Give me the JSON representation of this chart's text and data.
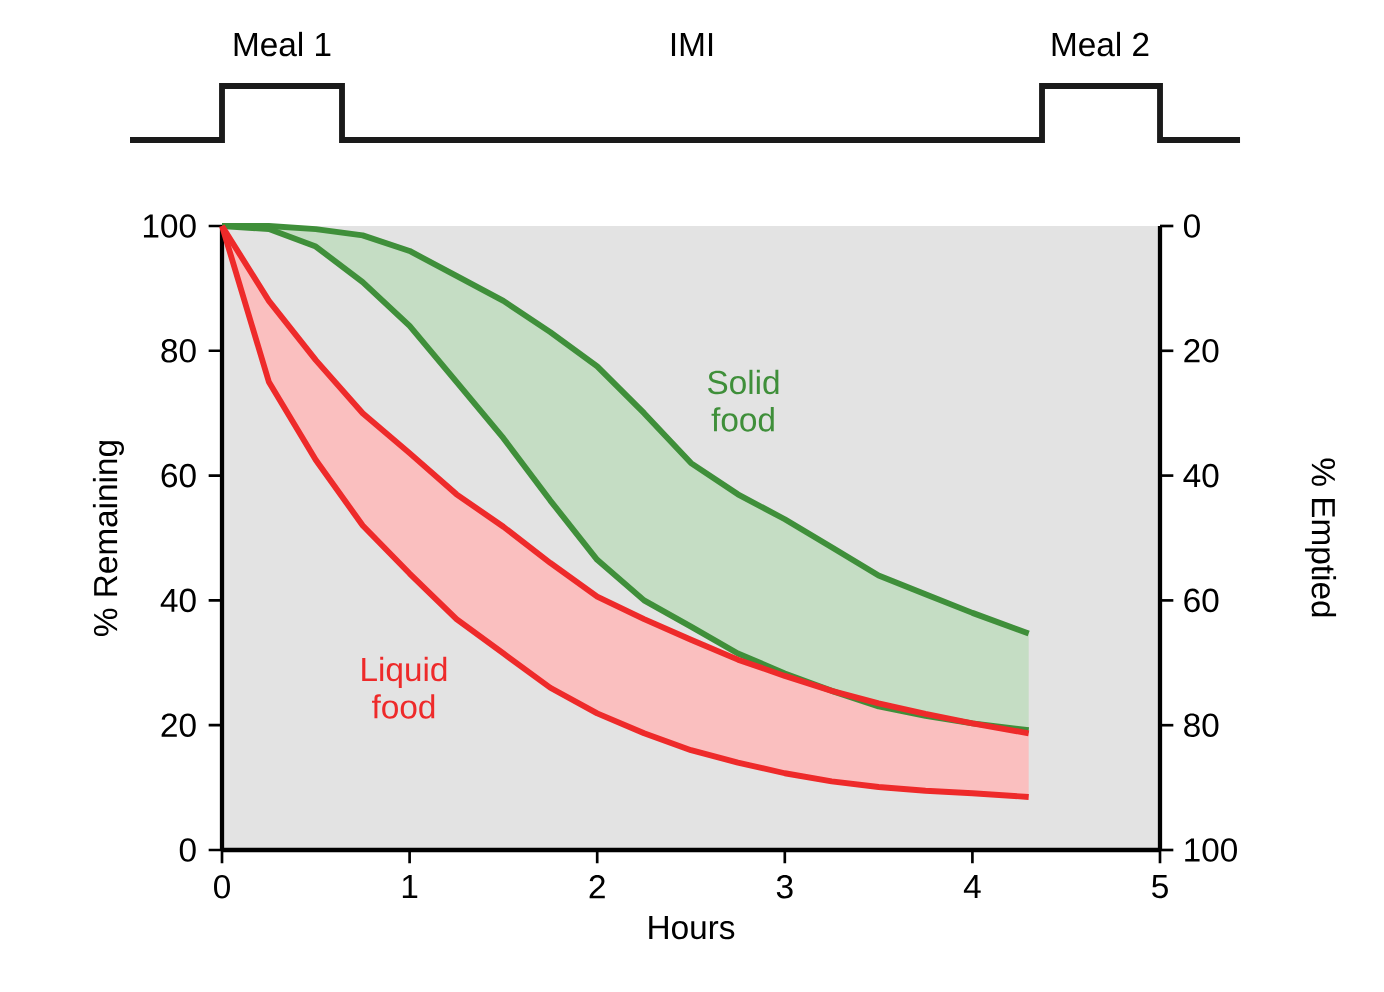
{
  "chart_data": [
    {
      "type": "other",
      "annotations": [
        "Meal 1",
        "IMI",
        "Meal 2"
      ]
    },
    {
      "type": "line",
      "xlabel": "Hours",
      "ylabel": "% Remaining",
      "y2label": "% Emptied",
      "marker": "none",
      "x": [
        0,
        0.25,
        0.5,
        0.75,
        1,
        1.25,
        1.5,
        1.75,
        2,
        2.25,
        2.5,
        2.75,
        3,
        3.25,
        3.5,
        3.75,
        4,
        4.3
      ],
      "series": [
        {
          "color": "#3f8f3a",
          "values": [
            100,
            100,
            99.5,
            98.5,
            96,
            92,
            88,
            83,
            77.5,
            70,
            62,
            57,
            53,
            48.5,
            44,
            41,
            38,
            34.7
          ],
          "upper": [
            100,
            100,
            99.5,
            98.5,
            96,
            92,
            88,
            83,
            77.5,
            70,
            62,
            57,
            53,
            48.5,
            44,
            41,
            38,
            34.7
          ],
          "lower": [
            100,
            99.5,
            96.7,
            91,
            84,
            75,
            66,
            56,
            46.5,
            40,
            35.8,
            31.5,
            28.3,
            25.5,
            23,
            21.5,
            20.3,
            19.2
          ]
        },
        {
          "color": "#3f8f3a",
          "values": [
            100,
            99.5,
            96.7,
            91,
            84,
            75,
            66,
            56,
            46.5,
            40,
            35.8,
            31.5,
            28.3,
            25.5,
            23,
            21.5,
            20.3,
            19.2
          ]
        },
        {
          "color": "#ee2a2a",
          "values": [
            100,
            88,
            78.5,
            70,
            63.6,
            57,
            51.8,
            46,
            40.6,
            37,
            33.7,
            30.5,
            27.9,
            25.5,
            23.5,
            21.8,
            20.3,
            18.7
          ],
          "upper": [
            100,
            88,
            78.5,
            70,
            63.6,
            57,
            51.8,
            46,
            40.6,
            37,
            33.7,
            30.5,
            27.9,
            25.5,
            23.5,
            21.8,
            20.3,
            18.7
          ],
          "lower": [
            100,
            75,
            62.5,
            52,
            44.3,
            37,
            31.5,
            26,
            21.9,
            18.7,
            16,
            14,
            12.3,
            11,
            10.1,
            9.5,
            9.1,
            8.5
          ]
        },
        {
          "color": "#ee2a2a",
          "values": [
            100,
            75,
            62.5,
            52,
            44.3,
            37,
            31.5,
            26,
            21.9,
            18.7,
            16,
            14,
            12.3,
            11,
            10.1,
            9.5,
            9.1,
            8.5
          ]
        }
      ],
      "annotations": [
        "Solid food",
        "Liquid food"
      ],
      "xlim": [
        0,
        5
      ],
      "xticks": [
        0,
        1,
        2,
        3,
        4,
        5
      ],
      "ylim": [
        0,
        100
      ],
      "yticks": [
        0,
        20,
        40,
        60,
        80,
        100
      ],
      "y2lim": [
        100,
        0
      ],
      "y2ticks": [
        0,
        20,
        40,
        60,
        80,
        100
      ]
    }
  ]
}
